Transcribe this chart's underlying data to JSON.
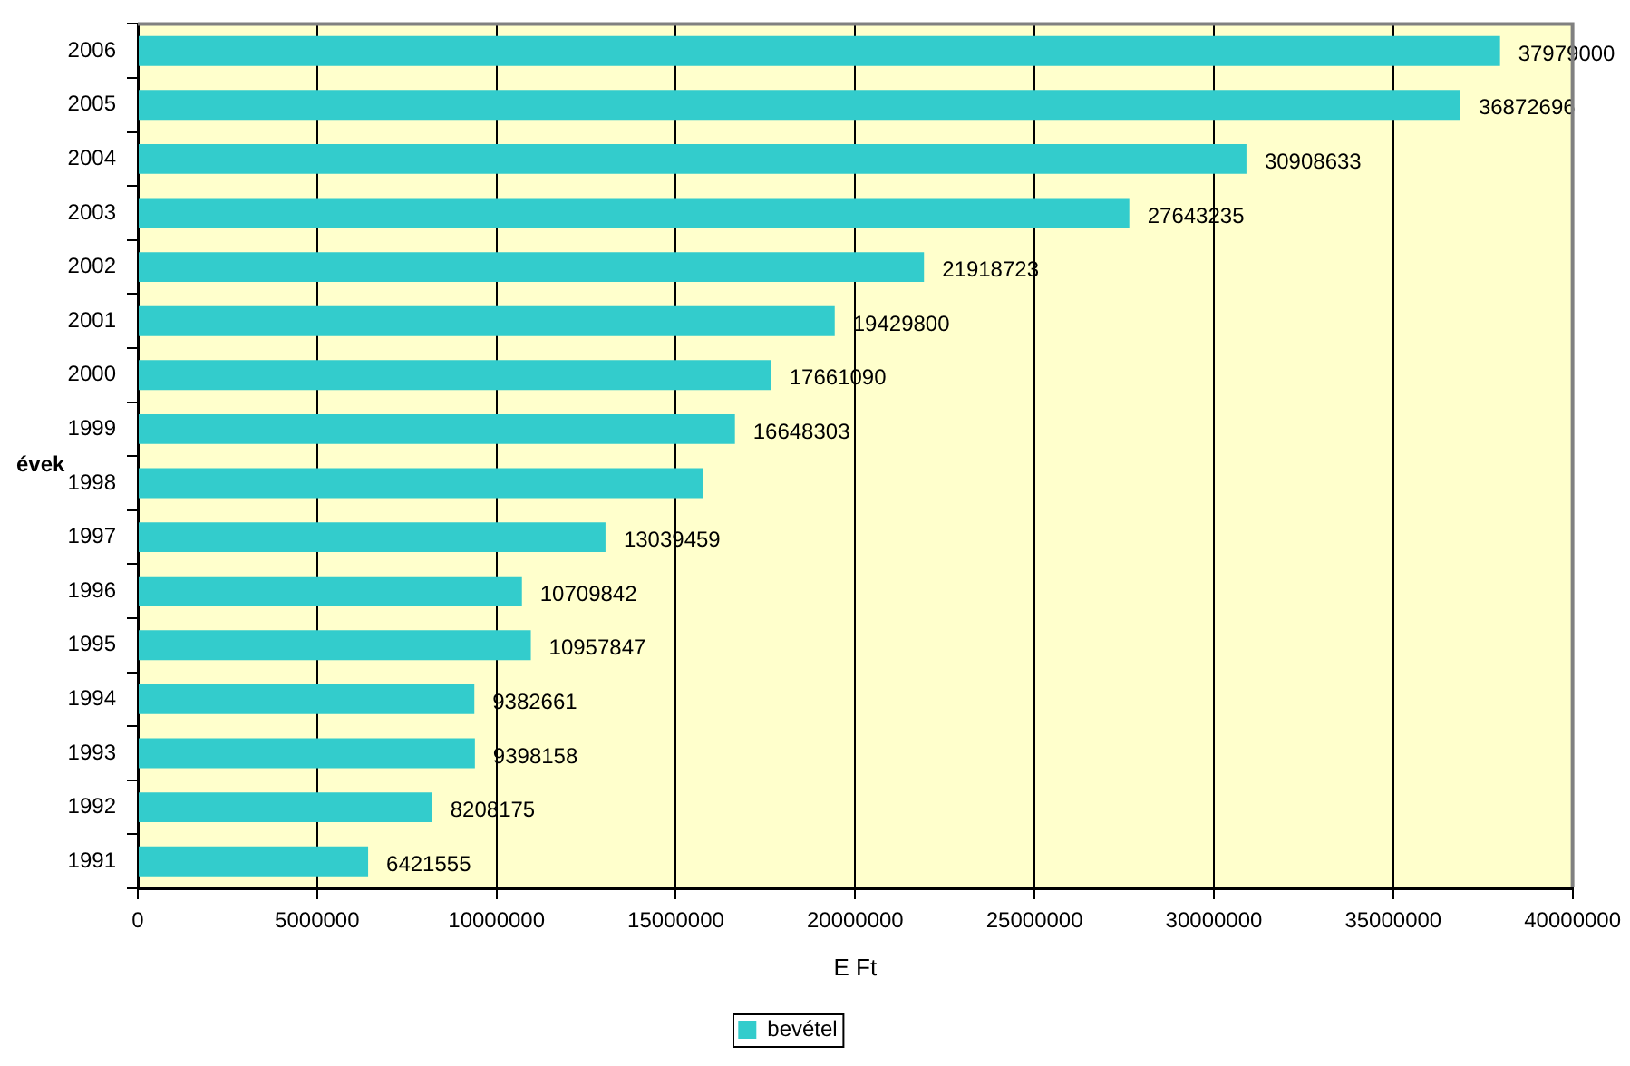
{
  "chart_data": {
    "type": "bar",
    "orientation": "horizontal",
    "xlabel": "E Ft",
    "ylabel": "évek",
    "categories": [
      "2006",
      "2005",
      "2004",
      "2003",
      "2002",
      "2001",
      "2000",
      "1999",
      "1998",
      "1997",
      "1996",
      "1995",
      "1994",
      "1993",
      "1992",
      "1991"
    ],
    "series": [
      {
        "name": "bevétel",
        "color": "#33cccc",
        "values": [
          37979000,
          36872696,
          30908633,
          27643235,
          21918723,
          19429800,
          17661090,
          16648303,
          15750000,
          13039459,
          10709842,
          10957847,
          9382661,
          9398158,
          8208175,
          6421555
        ],
        "value_labels": [
          "37979000",
          "36872696",
          "30908633",
          "27643235",
          "21918723",
          "19429800",
          "17661090",
          "16648303",
          null,
          "13039459",
          "10709842",
          "10957847",
          "9382661",
          "9398158",
          "8208175",
          "6421555"
        ]
      }
    ],
    "xlim": [
      0,
      40000000
    ],
    "xticks": [
      0,
      5000000,
      10000000,
      15000000,
      20000000,
      25000000,
      30000000,
      35000000,
      40000000
    ],
    "grid": "x",
    "legend": "bottom"
  }
}
